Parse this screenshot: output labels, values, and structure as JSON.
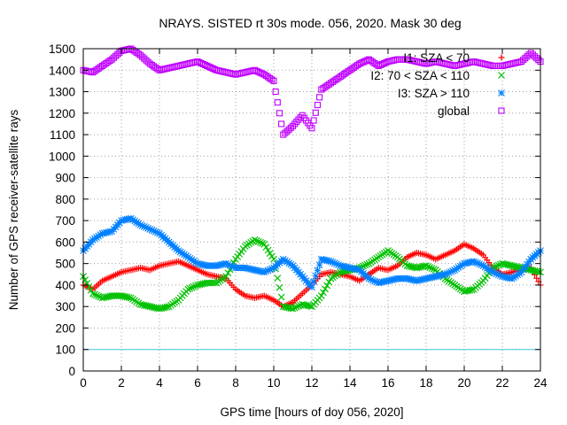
{
  "chart_data": {
    "type": "scatter",
    "title": "NRAYS. SISTED rt 30s mode. 056, 2020. Mask 30 deg",
    "xlabel": "GPS time [hours of doy 056, 2020]",
    "ylabel": "Number of GPS receiver-satellite rays",
    "xlim": [
      0,
      24
    ],
    "ylim": [
      0,
      1500
    ],
    "xticks": [
      0,
      2,
      4,
      6,
      8,
      10,
      12,
      14,
      16,
      18,
      20,
      22,
      24
    ],
    "yticks": [
      0,
      100,
      200,
      300,
      400,
      500,
      600,
      700,
      800,
      900,
      1000,
      1100,
      1200,
      1300,
      1400,
      1500
    ],
    "grid": true,
    "reference_line": {
      "y": 100,
      "color": "#40c8e0"
    },
    "legend_position": "top-right",
    "series": [
      {
        "name": "I1: SZA < 70",
        "marker": "plus",
        "color": "#ff0000",
        "x": [
          0,
          0.5,
          1,
          1.5,
          2,
          2.5,
          3,
          3.5,
          4,
          4.5,
          5,
          5.5,
          6,
          6.5,
          7,
          7.5,
          8,
          8.5,
          9,
          9.5,
          10,
          10.5,
          11,
          11.5,
          12,
          12.5,
          13,
          13.5,
          14,
          14.5,
          15,
          15.5,
          16,
          16.5,
          17,
          17.5,
          18,
          18.5,
          19,
          19.5,
          20,
          20.5,
          21,
          21.5,
          22,
          22.5,
          23,
          23.5,
          24
        ],
        "y": [
          400,
          380,
          420,
          440,
          460,
          470,
          480,
          470,
          490,
          500,
          510,
          490,
          470,
          450,
          440,
          430,
          380,
          350,
          340,
          350,
          330,
          300,
          320,
          360,
          400,
          450,
          460,
          450,
          440,
          420,
          450,
          480,
          470,
          490,
          530,
          550,
          540,
          520,
          540,
          560,
          590,
          570,
          540,
          480,
          450,
          460,
          470,
          480,
          400
        ]
      },
      {
        "name": "I2: 70 < SZA < 110",
        "marker": "cross",
        "color": "#00c000",
        "x": [
          0,
          0.5,
          1,
          1.5,
          2,
          2.5,
          3,
          3.5,
          4,
          4.5,
          5,
          5.5,
          6,
          6.5,
          7,
          7.5,
          8,
          8.5,
          9,
          9.5,
          10,
          10.5,
          11,
          11.5,
          12,
          12.5,
          13,
          13.5,
          14,
          14.5,
          15,
          15.5,
          16,
          16.5,
          17,
          17.5,
          18,
          18.5,
          19,
          19.5,
          20,
          20.5,
          21,
          21.5,
          22,
          22.5,
          23,
          23.5,
          24
        ],
        "y": [
          440,
          360,
          340,
          350,
          350,
          340,
          310,
          300,
          290,
          300,
          330,
          380,
          400,
          410,
          410,
          440,
          520,
          580,
          610,
          590,
          520,
          300,
          290,
          310,
          300,
          350,
          430,
          460,
          470,
          480,
          500,
          530,
          560,
          530,
          490,
          480,
          490,
          470,
          430,
          400,
          370,
          380,
          420,
          480,
          500,
          490,
          480,
          470,
          460
        ]
      },
      {
        "name": "I3: SZA > 110",
        "marker": "star",
        "color": "#0080ff",
        "x": [
          0,
          0.5,
          1,
          1.5,
          2,
          2.5,
          3,
          3.5,
          4,
          4.5,
          5,
          5.5,
          6,
          6.5,
          7,
          7.5,
          8,
          8.5,
          9,
          9.5,
          10,
          10.5,
          11,
          11.5,
          12,
          12.5,
          13,
          13.5,
          14,
          14.5,
          15,
          15.5,
          16,
          16.5,
          17,
          17.5,
          18,
          18.5,
          19,
          19.5,
          20,
          20.5,
          21,
          21.5,
          22,
          22.5,
          23,
          23.5,
          24
        ],
        "y": [
          560,
          610,
          640,
          650,
          700,
          710,
          680,
          660,
          640,
          600,
          560,
          530,
          500,
          490,
          490,
          500,
          480,
          480,
          470,
          460,
          480,
          520,
          490,
          440,
          390,
          520,
          510,
          490,
          480,
          470,
          430,
          410,
          420,
          430,
          430,
          420,
          430,
          440,
          450,
          470,
          500,
          510,
          490,
          460,
          440,
          430,
          460,
          520,
          560
        ]
      },
      {
        "name": "global",
        "marker": "square",
        "color": "#c000ff",
        "x": [
          0,
          0.5,
          1,
          1.5,
          2,
          2.5,
          3,
          3.5,
          4,
          4.5,
          5,
          5.5,
          6,
          6.5,
          7,
          7.5,
          8,
          8.5,
          9,
          9.5,
          10,
          10.5,
          11,
          11.5,
          12,
          12.5,
          13,
          13.5,
          14,
          14.5,
          15,
          15.5,
          16,
          16.5,
          17,
          17.5,
          18,
          18.5,
          19,
          19.5,
          20,
          20.5,
          21,
          21.5,
          22,
          22.5,
          23,
          23.5,
          24
        ],
        "y": [
          1400,
          1390,
          1420,
          1450,
          1490,
          1500,
          1470,
          1430,
          1400,
          1410,
          1420,
          1430,
          1440,
          1420,
          1400,
          1390,
          1380,
          1390,
          1400,
          1380,
          1350,
          1100,
          1140,
          1190,
          1130,
          1310,
          1340,
          1370,
          1400,
          1430,
          1450,
          1420,
          1440,
          1450,
          1450,
          1440,
          1430,
          1440,
          1430,
          1420,
          1430,
          1440,
          1430,
          1420,
          1420,
          1430,
          1440,
          1480,
          1440
        ]
      }
    ]
  }
}
